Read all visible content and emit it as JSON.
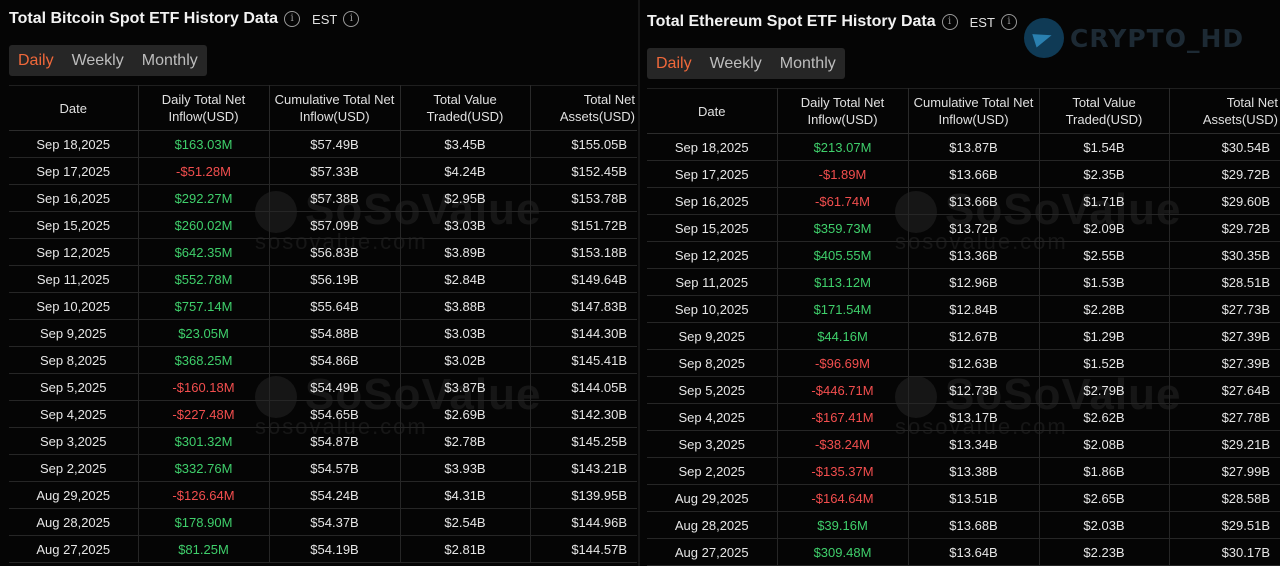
{
  "btc": {
    "title": "Total Bitcoin Spot ETF History Data",
    "timezone": "EST",
    "tabs": [
      {
        "label": "Daily",
        "active": true
      },
      {
        "label": "Weekly",
        "active": false
      },
      {
        "label": "Monthly",
        "active": false
      }
    ],
    "headers": [
      "Date",
      "Daily Total Net Inflow(USD)",
      "Cumulative Total Net Inflow(USD)",
      "Total Value Traded(USD)",
      "Total Net Assets(USD)"
    ],
    "rows": [
      {
        "date": "Sep 18,2025",
        "inflow": "$163.03M",
        "sign": "pos",
        "cumulative": "$57.49B",
        "traded": "$3.45B",
        "assets": "$155.05B"
      },
      {
        "date": "Sep 17,2025",
        "inflow": "-$51.28M",
        "sign": "neg",
        "cumulative": "$57.33B",
        "traded": "$4.24B",
        "assets": "$152.45B"
      },
      {
        "date": "Sep 16,2025",
        "inflow": "$292.27M",
        "sign": "pos",
        "cumulative": "$57.38B",
        "traded": "$2.95B",
        "assets": "$153.78B"
      },
      {
        "date": "Sep 15,2025",
        "inflow": "$260.02M",
        "sign": "pos",
        "cumulative": "$57.09B",
        "traded": "$3.03B",
        "assets": "$151.72B"
      },
      {
        "date": "Sep 12,2025",
        "inflow": "$642.35M",
        "sign": "pos",
        "cumulative": "$56.83B",
        "traded": "$3.89B",
        "assets": "$153.18B"
      },
      {
        "date": "Sep 11,2025",
        "inflow": "$552.78M",
        "sign": "pos",
        "cumulative": "$56.19B",
        "traded": "$2.84B",
        "assets": "$149.64B"
      },
      {
        "date": "Sep 10,2025",
        "inflow": "$757.14M",
        "sign": "pos",
        "cumulative": "$55.64B",
        "traded": "$3.88B",
        "assets": "$147.83B"
      },
      {
        "date": "Sep 9,2025",
        "inflow": "$23.05M",
        "sign": "pos",
        "cumulative": "$54.88B",
        "traded": "$3.03B",
        "assets": "$144.30B"
      },
      {
        "date": "Sep 8,2025",
        "inflow": "$368.25M",
        "sign": "pos",
        "cumulative": "$54.86B",
        "traded": "$3.02B",
        "assets": "$145.41B"
      },
      {
        "date": "Sep 5,2025",
        "inflow": "-$160.18M",
        "sign": "neg",
        "cumulative": "$54.49B",
        "traded": "$3.87B",
        "assets": "$144.05B"
      },
      {
        "date": "Sep 4,2025",
        "inflow": "-$227.48M",
        "sign": "neg",
        "cumulative": "$54.65B",
        "traded": "$2.69B",
        "assets": "$142.30B"
      },
      {
        "date": "Sep 3,2025",
        "inflow": "$301.32M",
        "sign": "pos",
        "cumulative": "$54.87B",
        "traded": "$2.78B",
        "assets": "$145.25B"
      },
      {
        "date": "Sep 2,2025",
        "inflow": "$332.76M",
        "sign": "pos",
        "cumulative": "$54.57B",
        "traded": "$3.93B",
        "assets": "$143.21B"
      },
      {
        "date": "Aug 29,2025",
        "inflow": "-$126.64M",
        "sign": "neg",
        "cumulative": "$54.24B",
        "traded": "$4.31B",
        "assets": "$139.95B"
      },
      {
        "date": "Aug 28,2025",
        "inflow": "$178.90M",
        "sign": "pos",
        "cumulative": "$54.37B",
        "traded": "$2.54B",
        "assets": "$144.96B"
      },
      {
        "date": "Aug 27,2025",
        "inflow": "$81.25M",
        "sign": "pos",
        "cumulative": "$54.19B",
        "traded": "$2.81B",
        "assets": "$144.57B"
      }
    ]
  },
  "eth": {
    "title": "Total Ethereum Spot ETF History Data",
    "timezone": "EST",
    "tabs": [
      {
        "label": "Daily",
        "active": true
      },
      {
        "label": "Weekly",
        "active": false
      },
      {
        "label": "Monthly",
        "active": false
      }
    ],
    "headers": [
      "Date",
      "Daily Total Net Inflow(USD)",
      "Cumulative Total Net Inflow(USD)",
      "Total Value Traded(USD)",
      "Total Net Assets(USD)"
    ],
    "rows": [
      {
        "date": "Sep 18,2025",
        "inflow": "$213.07M",
        "sign": "pos",
        "cumulative": "$13.87B",
        "traded": "$1.54B",
        "assets": "$30.54B"
      },
      {
        "date": "Sep 17,2025",
        "inflow": "-$1.89M",
        "sign": "neg",
        "cumulative": "$13.66B",
        "traded": "$2.35B",
        "assets": "$29.72B"
      },
      {
        "date": "Sep 16,2025",
        "inflow": "-$61.74M",
        "sign": "neg",
        "cumulative": "$13.66B",
        "traded": "$1.71B",
        "assets": "$29.60B"
      },
      {
        "date": "Sep 15,2025",
        "inflow": "$359.73M",
        "sign": "pos",
        "cumulative": "$13.72B",
        "traded": "$2.09B",
        "assets": "$29.72B"
      },
      {
        "date": "Sep 12,2025",
        "inflow": "$405.55M",
        "sign": "pos",
        "cumulative": "$13.36B",
        "traded": "$2.55B",
        "assets": "$30.35B"
      },
      {
        "date": "Sep 11,2025",
        "inflow": "$113.12M",
        "sign": "pos",
        "cumulative": "$12.96B",
        "traded": "$1.53B",
        "assets": "$28.51B"
      },
      {
        "date": "Sep 10,2025",
        "inflow": "$171.54M",
        "sign": "pos",
        "cumulative": "$12.84B",
        "traded": "$2.28B",
        "assets": "$27.73B"
      },
      {
        "date": "Sep 9,2025",
        "inflow": "$44.16M",
        "sign": "pos",
        "cumulative": "$12.67B",
        "traded": "$1.29B",
        "assets": "$27.39B"
      },
      {
        "date": "Sep 8,2025",
        "inflow": "-$96.69M",
        "sign": "neg",
        "cumulative": "$12.63B",
        "traded": "$1.52B",
        "assets": "$27.39B"
      },
      {
        "date": "Sep 5,2025",
        "inflow": "-$446.71M",
        "sign": "neg",
        "cumulative": "$12.73B",
        "traded": "$2.79B",
        "assets": "$27.64B"
      },
      {
        "date": "Sep 4,2025",
        "inflow": "-$167.41M",
        "sign": "neg",
        "cumulative": "$13.17B",
        "traded": "$2.62B",
        "assets": "$27.78B"
      },
      {
        "date": "Sep 3,2025",
        "inflow": "-$38.24M",
        "sign": "neg",
        "cumulative": "$13.34B",
        "traded": "$2.08B",
        "assets": "$29.21B"
      },
      {
        "date": "Sep 2,2025",
        "inflow": "-$135.37M",
        "sign": "neg",
        "cumulative": "$13.38B",
        "traded": "$1.86B",
        "assets": "$27.99B"
      },
      {
        "date": "Aug 29,2025",
        "inflow": "-$164.64M",
        "sign": "neg",
        "cumulative": "$13.51B",
        "traded": "$2.65B",
        "assets": "$28.58B"
      },
      {
        "date": "Aug 28,2025",
        "inflow": "$39.16M",
        "sign": "pos",
        "cumulative": "$13.68B",
        "traded": "$2.03B",
        "assets": "$29.51B"
      },
      {
        "date": "Aug 27,2025",
        "inflow": "$309.48M",
        "sign": "pos",
        "cumulative": "$13.64B",
        "traded": "$2.23B",
        "assets": "$30.17B"
      }
    ]
  },
  "watermark": {
    "name": "SoSoValue",
    "url": "sosovalue.com"
  },
  "brand": {
    "label": "CRYPTO_HD",
    "icon": "telegram-icon"
  },
  "colors": {
    "positive": "#3fcf6b",
    "negative": "#f24e4e",
    "active_tab": "#f0683a"
  }
}
